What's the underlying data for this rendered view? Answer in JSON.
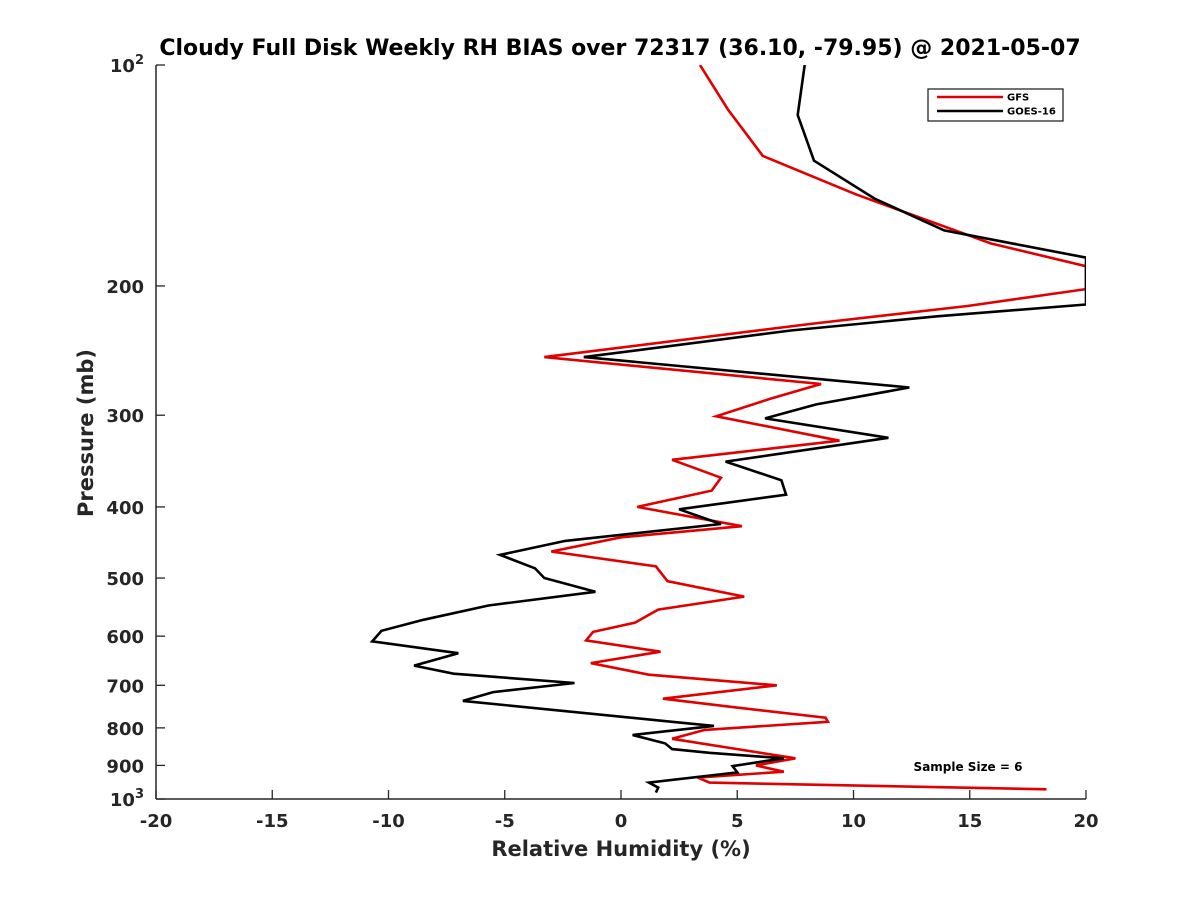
{
  "chart_data": {
    "type": "line",
    "title": "Cloudy Full Disk Weekly RH BIAS over 72317 (36.10, -79.95) @ 2021-05-07",
    "xlabel": "Relative Humidity (%)",
    "ylabel": "Pressure (mb)",
    "xlim": [
      -20,
      20
    ],
    "ylim": [
      100,
      1000
    ],
    "y_scale": "log",
    "y_reversed": true,
    "grid": false,
    "legend_position": "top-right",
    "x_ticks": [
      {
        "value": -20,
        "label": "-20"
      },
      {
        "value": -15,
        "label": "-15"
      },
      {
        "value": -10,
        "label": "-10"
      },
      {
        "value": -5,
        "label": "-5"
      },
      {
        "value": 0,
        "label": "0"
      },
      {
        "value": 5,
        "label": "5"
      },
      {
        "value": 10,
        "label": "10"
      },
      {
        "value": 15,
        "label": "15"
      },
      {
        "value": 20,
        "label": "20"
      }
    ],
    "y_ticks": [
      {
        "value": 100,
        "base": "10",
        "exp": "2"
      },
      {
        "value": 200,
        "base": "200",
        "exp": ""
      },
      {
        "value": 300,
        "base": "300",
        "exp": ""
      },
      {
        "value": 400,
        "base": "400",
        "exp": ""
      },
      {
        "value": 500,
        "base": "500",
        "exp": ""
      },
      {
        "value": 600,
        "base": "600",
        "exp": ""
      },
      {
        "value": 700,
        "base": "700",
        "exp": ""
      },
      {
        "value": 800,
        "base": "800",
        "exp": ""
      },
      {
        "value": 900,
        "base": "900",
        "exp": ""
      },
      {
        "value": 1000,
        "base": "10",
        "exp": "3"
      }
    ],
    "series": [
      {
        "name": "GFS",
        "color": "#e00000",
        "points": [
          [
            3.4,
            100
          ],
          [
            4.6,
            115
          ],
          [
            6.1,
            133
          ],
          [
            10.1,
            150
          ],
          [
            15.9,
            175
          ],
          [
            20.0,
            188
          ],
          [
            20.0,
            202
          ],
          [
            14.9,
            213
          ],
          [
            8.3,
            225
          ],
          [
            -3.3,
            250
          ],
          [
            8.6,
            272
          ],
          [
            6.4,
            285
          ],
          [
            4.1,
            301
          ],
          [
            9.4,
            325
          ],
          [
            2.2,
            345
          ],
          [
            4.3,
            365
          ],
          [
            3.9,
            380
          ],
          [
            0.7,
            400
          ],
          [
            5.2,
            425
          ],
          [
            0.0,
            440
          ],
          [
            -3.0,
            460
          ],
          [
            1.5,
            482
          ],
          [
            2.0,
            505
          ],
          [
            5.3,
            530
          ],
          [
            1.6,
            552
          ],
          [
            0.6,
            575
          ],
          [
            -1.2,
            592
          ],
          [
            -1.5,
            608
          ],
          [
            1.7,
            630
          ],
          [
            -1.3,
            653
          ],
          [
            1.2,
            677
          ],
          [
            6.7,
            700
          ],
          [
            1.8,
            730
          ],
          [
            4.9,
            750
          ],
          [
            8.8,
            775
          ],
          [
            8.9,
            785
          ],
          [
            3.6,
            805
          ],
          [
            2.2,
            828
          ],
          [
            5.0,
            855
          ],
          [
            7.5,
            880
          ],
          [
            5.8,
            900
          ],
          [
            7.0,
            918
          ],
          [
            3.3,
            935
          ],
          [
            3.8,
            950
          ],
          [
            18.3,
            970
          ]
        ]
      },
      {
        "name": "GOES-16",
        "color": "#000000",
        "points": [
          [
            7.9,
            100
          ],
          [
            7.6,
            117
          ],
          [
            8.3,
            135
          ],
          [
            10.9,
            152
          ],
          [
            13.9,
            168
          ],
          [
            20.0,
            183
          ],
          [
            20.0,
            212
          ],
          [
            13.6,
            220
          ],
          [
            7.3,
            230
          ],
          [
            -1.6,
            250
          ],
          [
            12.4,
            275
          ],
          [
            8.4,
            290
          ],
          [
            6.2,
            303
          ],
          [
            11.5,
            322
          ],
          [
            4.5,
            347
          ],
          [
            6.9,
            368
          ],
          [
            7.1,
            385
          ],
          [
            2.5,
            403
          ],
          [
            4.3,
            422
          ],
          [
            -2.4,
            445
          ],
          [
            -5.2,
            465
          ],
          [
            -3.7,
            485
          ],
          [
            -3.3,
            500
          ],
          [
            -1.1,
            522
          ],
          [
            -5.7,
            545
          ],
          [
            -8.5,
            570
          ],
          [
            -10.3,
            590
          ],
          [
            -10.7,
            610
          ],
          [
            -7.0,
            633
          ],
          [
            -8.9,
            658
          ],
          [
            -7.2,
            675
          ],
          [
            -2.0,
            695
          ],
          [
            -5.5,
            715
          ],
          [
            -6.8,
            735
          ],
          [
            2.2,
            785
          ],
          [
            4.0,
            795
          ],
          [
            0.5,
            818
          ],
          [
            1.9,
            840
          ],
          [
            2.2,
            855
          ],
          [
            3.8,
            865
          ],
          [
            7.0,
            880
          ],
          [
            4.8,
            902
          ],
          [
            5.0,
            920
          ],
          [
            1.2,
            950
          ],
          [
            1.6,
            965
          ],
          [
            1.5,
            980
          ]
        ]
      }
    ],
    "annotations": [
      {
        "text": "Sample Size = 6"
      }
    ]
  }
}
